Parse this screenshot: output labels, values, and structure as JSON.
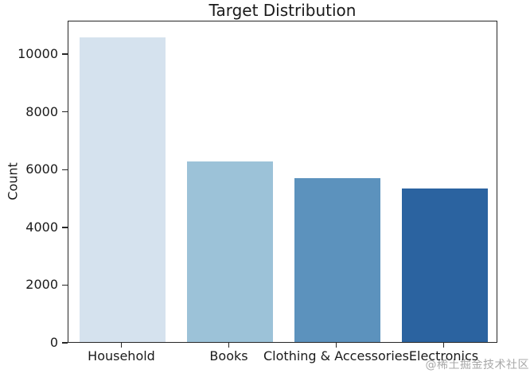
{
  "chart_data": {
    "type": "bar",
    "title": "Target Distribution",
    "xlabel": "",
    "ylabel": "Count",
    "categories": [
      "Household",
      "Books",
      "Clothing & Accessories",
      "Electronics"
    ],
    "values": [
      10564,
      6256,
      5674,
      5308
    ],
    "bar_colors": [
      "#d5e2ee",
      "#9cc2d8",
      "#5c92bd",
      "#2b63a0"
    ],
    "yticks": [
      0,
      2000,
      4000,
      6000,
      8000,
      10000
    ],
    "ylim": [
      0,
      11160
    ],
    "grid": false,
    "legend": null,
    "bar_width_fraction": 0.8,
    "layout": "vertical bars, full box spines, no gridlines"
  },
  "watermark": {
    "text": "@稀土掘金技术社区"
  },
  "colors": {
    "background": "#ffffff",
    "text": "#1a1a1a",
    "spine": "#262626",
    "watermark": "#999999"
  }
}
